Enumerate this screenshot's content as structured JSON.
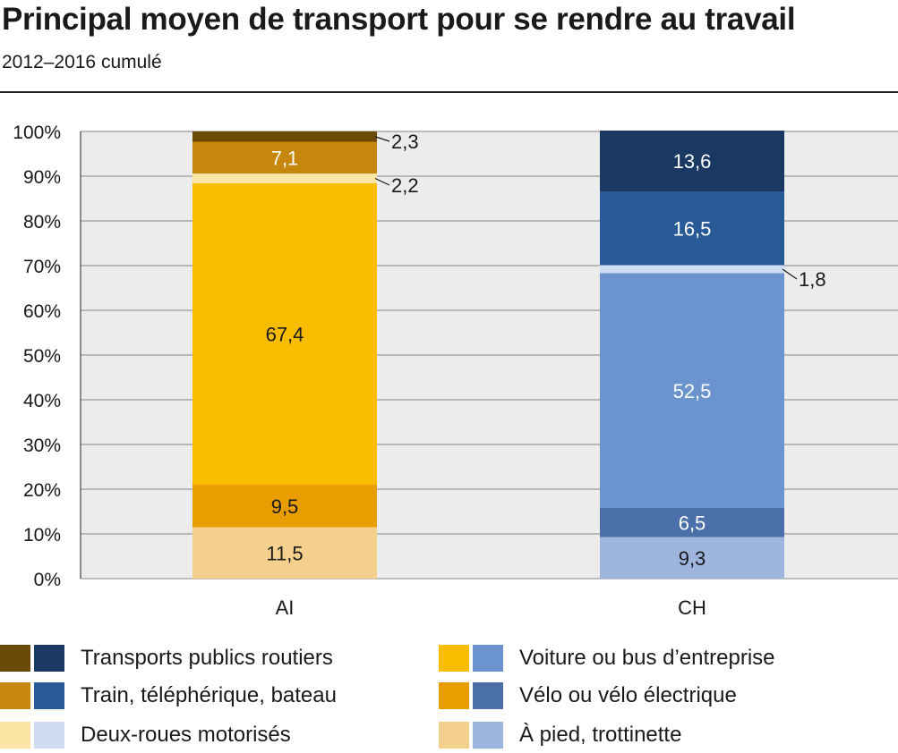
{
  "title": "Principal moyen de transport pour se rendre au travail",
  "subtitle": "2012–2016 cumulé",
  "chart_data": {
    "type": "bar",
    "stacked": true,
    "categories": [
      "AI",
      "CH"
    ],
    "ylim": [
      0,
      100
    ],
    "yticks": [
      "0%",
      "10%",
      "20%",
      "30%",
      "40%",
      "50%",
      "60%",
      "70%",
      "80%",
      "90%",
      "100%"
    ],
    "grid": true,
    "legend_position": "bottom",
    "series": [
      {
        "name": "À pied, trottinette",
        "values": [
          11.5,
          9.3
        ],
        "labels": [
          "11,5",
          "9,3"
        ],
        "colors": [
          "#f4d08d",
          "#9eb5de"
        ],
        "label_colors": [
          "#1a1a1a",
          "#1a1a1a"
        ]
      },
      {
        "name": "Vélo ou vélo électrique",
        "values": [
          9.5,
          6.5
        ],
        "labels": [
          "9,5",
          "6,5"
        ],
        "colors": [
          "#e89e00",
          "#4b6fa8"
        ],
        "label_colors": [
          "#1a1a1a",
          "#ffffff"
        ]
      },
      {
        "name": "Voiture ou bus d’entreprise",
        "values": [
          67.4,
          52.5
        ],
        "labels": [
          "67,4",
          "52,5"
        ],
        "colors": [
          "#f8bd00",
          "#6b93cd"
        ],
        "label_colors": [
          "#1a1a1a",
          "#ffffff"
        ]
      },
      {
        "name": "Deux-roues motorisés",
        "values": [
          2.2,
          1.8
        ],
        "labels": [
          "2,2",
          "1,8"
        ],
        "colors": [
          "#fde5a6",
          "#cfdcf1"
        ],
        "label_colors": [
          "#1a1a1a",
          "#1a1a1a"
        ]
      },
      {
        "name": "Train, téléphérique, bateau",
        "values": [
          7.1,
          16.5
        ],
        "labels": [
          "7,1",
          "16,5"
        ],
        "colors": [
          "#c6870d",
          "#275a96"
        ],
        "label_colors": [
          "#ffffff",
          "#ffffff"
        ]
      },
      {
        "name": "Transports publics routiers",
        "values": [
          2.3,
          13.6
        ],
        "labels": [
          "2,3",
          "13,6"
        ],
        "colors": [
          "#6b4a05",
          "#193862"
        ],
        "label_colors": [
          "#1a1a1a",
          "#ffffff"
        ]
      }
    ]
  },
  "legend": [
    {
      "label": "Transports publics routiers",
      "colors": [
        "#6b4a05",
        "#193862"
      ]
    },
    {
      "label": "Train, téléphérique, bateau",
      "colors": [
        "#c6870d",
        "#275a96"
      ]
    },
    {
      "label": "Deux-roues motorisés",
      "colors": [
        "#fde5a6",
        "#cfdcf1"
      ]
    },
    {
      "label": "Voiture ou bus d’entreprise",
      "colors": [
        "#f8bd00",
        "#6b93cd"
      ]
    },
    {
      "label": "Vélo ou vélo électrique",
      "colors": [
        "#e89e00",
        "#4b6fa8"
      ]
    },
    {
      "label": "À pied, trottinette",
      "colors": [
        "#f4d08d",
        "#9eb5de"
      ]
    }
  ]
}
